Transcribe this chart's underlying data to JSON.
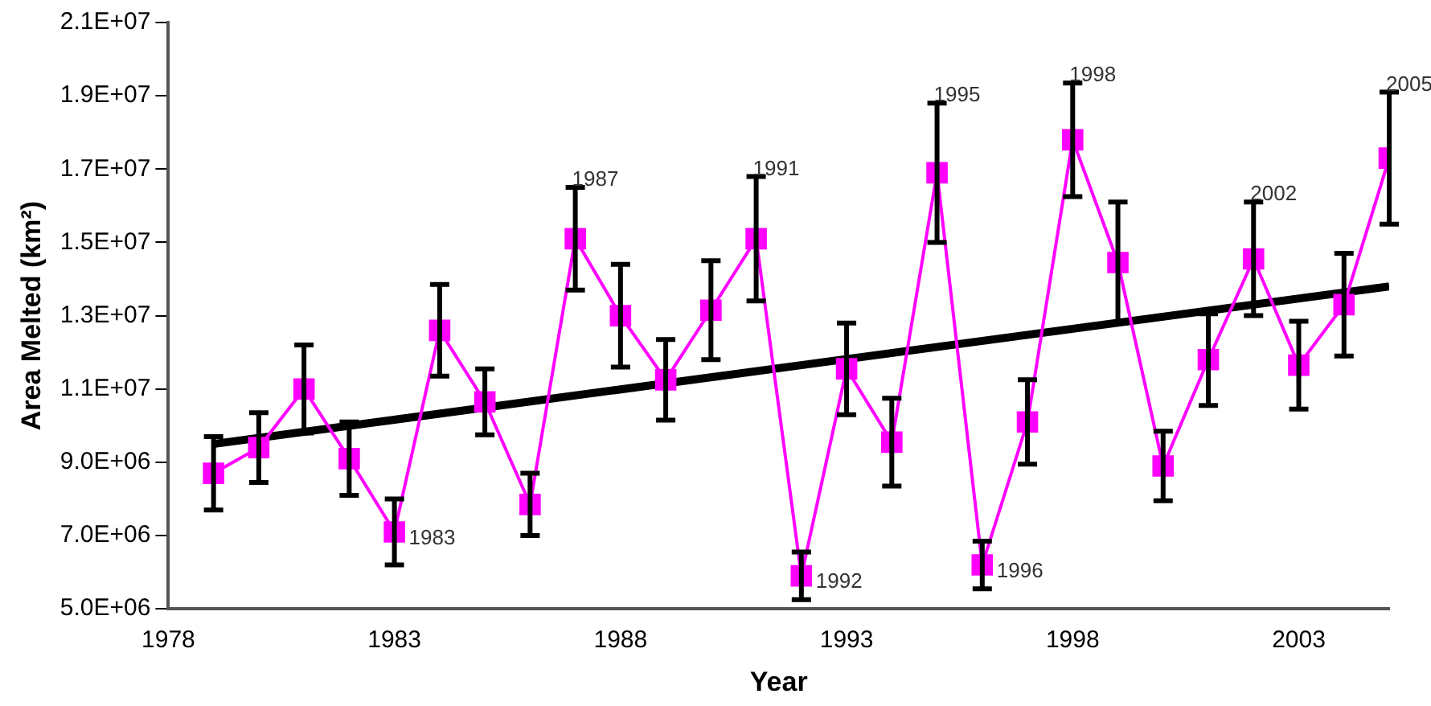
{
  "chart_data": {
    "type": "line",
    "xlabel": "Year",
    "ylabel": "Area Melted (km²)",
    "x": [
      1979,
      1980,
      1981,
      1982,
      1983,
      1984,
      1985,
      1986,
      1987,
      1988,
      1989,
      1990,
      1991,
      1992,
      1993,
      1994,
      1995,
      1996,
      1997,
      1998,
      1999,
      2000,
      2001,
      2002,
      2003,
      2004,
      2005
    ],
    "series": [
      {
        "color": "#ff00ff",
        "marker": "square",
        "values": [
          8700000,
          9400000,
          11000000,
          9100000,
          7100000,
          12600000,
          10650000,
          7850000,
          15100000,
          13000000,
          11250000,
          13150000,
          15100000,
          5900000,
          11550000,
          9550000,
          16900000,
          6200000,
          10100000,
          17800000,
          14450000,
          8900000,
          11800000,
          14550000,
          11650000,
          13300000,
          17300000
        ],
        "errors": [
          1000000,
          950000,
          1200000,
          1000000,
          900000,
          1250000,
          900000,
          850000,
          1400000,
          1400000,
          1100000,
          1350000,
          1700000,
          650000,
          1250000,
          1200000,
          1900000,
          650000,
          1150000,
          1550000,
          1650000,
          950000,
          1250000,
          1550000,
          1200000,
          1400000,
          1800000
        ]
      },
      {
        "type": "line",
        "color": "#000000",
        "marker": "none",
        "x": [
          1979,
          2005
        ],
        "values": [
          9500000,
          13800000
        ]
      }
    ],
    "xlim": [
      1978,
      2005
    ],
    "xticks": [
      1978,
      1983,
      1988,
      1993,
      1998,
      2003
    ],
    "ylim": [
      5000000,
      21000000
    ],
    "yticks": [
      {
        "value": 5000000,
        "label": "5.0E+06"
      },
      {
        "value": 7000000,
        "label": "7.0E+06"
      },
      {
        "value": 9000000,
        "label": "9.0E+06"
      },
      {
        "value": 11000000,
        "label": "1.1E+07"
      },
      {
        "value": 13000000,
        "label": "1.3E+07"
      },
      {
        "value": 15000000,
        "label": "1.5E+07"
      },
      {
        "value": 17000000,
        "label": "1.7E+07"
      },
      {
        "value": 19000000,
        "label": "1.9E+07"
      },
      {
        "value": 21000000,
        "label": "2.1E+07"
      }
    ],
    "grid": false,
    "legend": false,
    "annotations": [
      {
        "text": "1983",
        "x": 1983,
        "y": 7100000
      },
      {
        "text": "1987",
        "x": 1987,
        "y": 16500000
      },
      {
        "text": "1991",
        "x": 1991,
        "y": 16800000
      },
      {
        "text": "1992",
        "x": 1992,
        "y": 5900000
      },
      {
        "text": "1995",
        "x": 1995,
        "y": 18800000
      },
      {
        "text": "1996",
        "x": 1996,
        "y": 6200000
      },
      {
        "text": "1998",
        "x": 1998,
        "y": 19350000
      },
      {
        "text": "2002",
        "x": 2002,
        "y": 16100000
      },
      {
        "text": "2005",
        "x": 2005,
        "y": 19100000
      }
    ]
  }
}
